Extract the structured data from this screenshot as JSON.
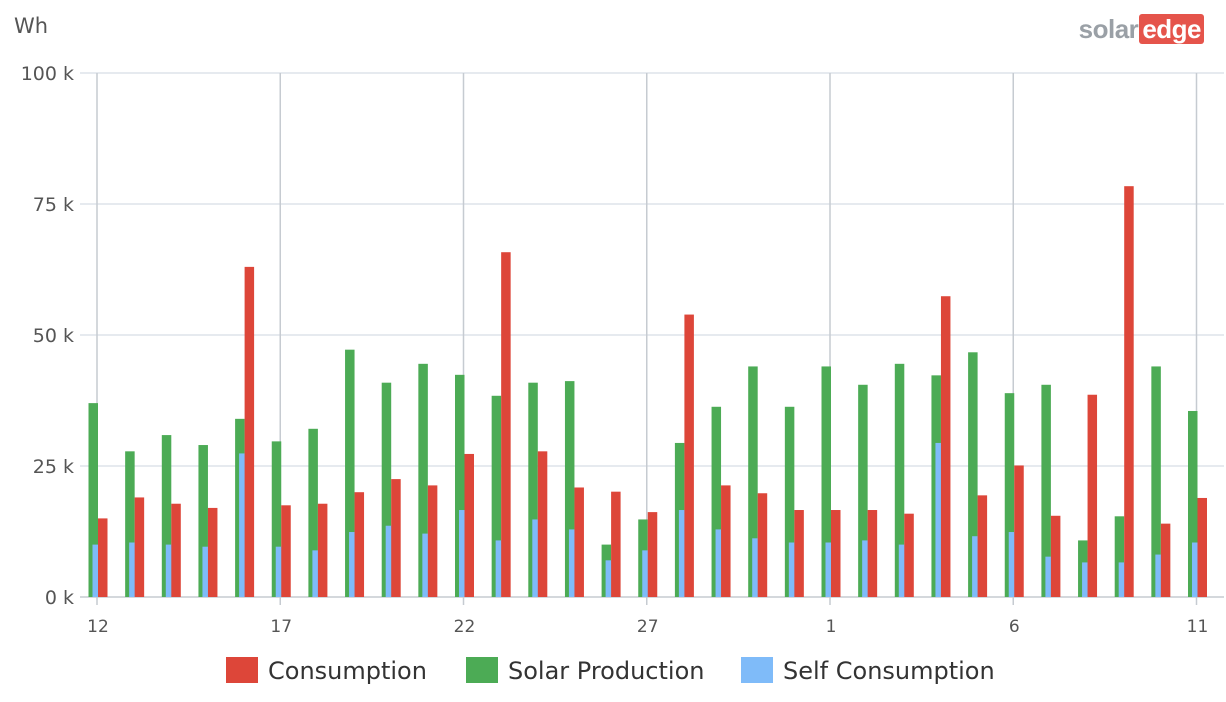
{
  "brand": {
    "part1": "solar",
    "part2": "edge"
  },
  "colors": {
    "consumption": "#dd4639",
    "production": "#4cab55",
    "self": "#7fbbf9",
    "grid": "#dde3ea",
    "vline": "#c6cbd1"
  },
  "chart_data": {
    "type": "bar",
    "title": "",
    "ylabel": "Wh",
    "xlabel": "",
    "ylim": [
      0,
      100000
    ],
    "yticks": [
      0,
      25000,
      50000,
      75000,
      100000
    ],
    "ytick_labels": [
      "0 k",
      "25 k",
      "50 k",
      "75 k",
      "100 k"
    ],
    "x_tick_labels": [
      {
        "index": 0,
        "label": "12"
      },
      {
        "index": 5,
        "label": "17"
      },
      {
        "index": 10,
        "label": "22"
      },
      {
        "index": 15,
        "label": "27"
      },
      {
        "index": 20,
        "label": "1"
      },
      {
        "index": 25,
        "label": "6"
      },
      {
        "index": 30,
        "label": "11"
      }
    ],
    "grid": true,
    "legend_position": "bottom",
    "series": [
      {
        "name": "Consumption",
        "color": "#dd4639",
        "values": [
          15000,
          19000,
          17800,
          17000,
          63000,
          17500,
          17800,
          20000,
          22500,
          21300,
          27300,
          65800,
          27800,
          20900,
          20100,
          16200,
          53900,
          21300,
          19800,
          16600,
          16600,
          16600,
          15900,
          57400,
          19400,
          25100,
          15500,
          38600,
          78400,
          14000,
          18900
        ]
      },
      {
        "name": "Solar Production",
        "color": "#4cab55",
        "values": [
          37000,
          27800,
          30900,
          29000,
          34000,
          29700,
          32100,
          47200,
          40900,
          44500,
          42400,
          38400,
          40900,
          41200,
          10000,
          14800,
          29400,
          36300,
          44000,
          36300,
          44000,
          40500,
          44500,
          42300,
          46700,
          38900,
          40500,
          10800,
          15400,
          44000,
          35500
        ]
      },
      {
        "name": "Self Consumption",
        "color": "#7fbbf9",
        "values": [
          10000,
          10400,
          10000,
          9600,
          27400,
          9600,
          8900,
          12400,
          13600,
          12100,
          16600,
          10800,
          14800,
          12900,
          7000,
          8900,
          16600,
          12900,
          11200,
          10400,
          10400,
          10800,
          10000,
          29400,
          11600,
          12400,
          7700,
          6600,
          6600,
          8100,
          10400
        ]
      }
    ]
  }
}
